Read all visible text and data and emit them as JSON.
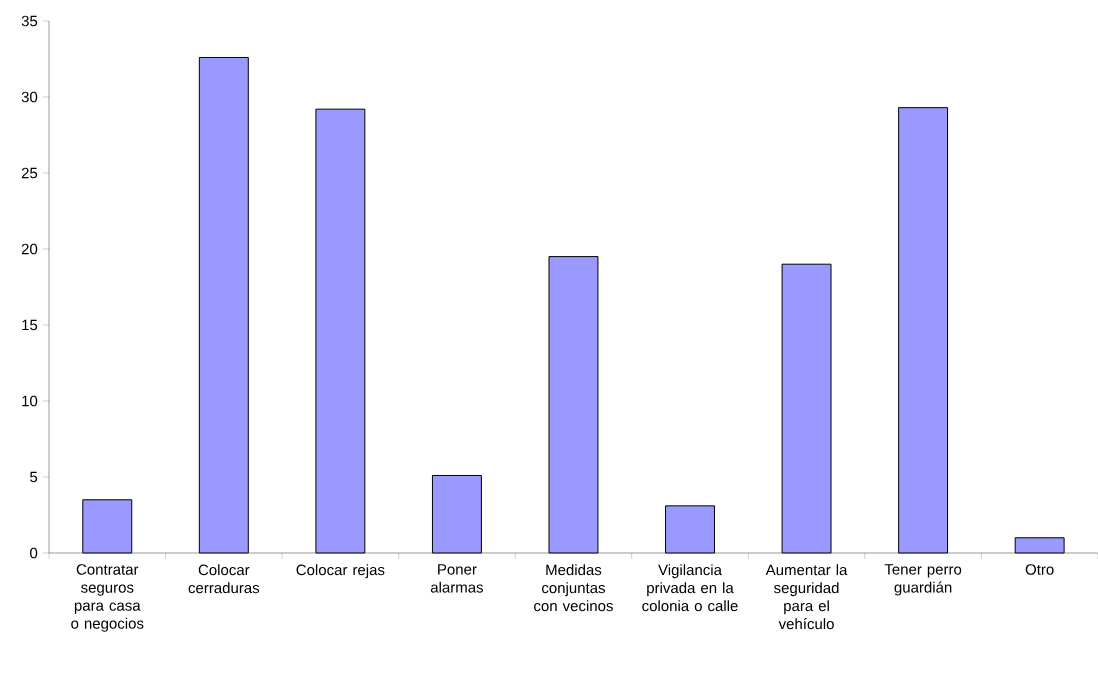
{
  "chart_data": {
    "type": "bar",
    "categories": [
      "Contratar seguros para casa o negocios",
      "Colocar cerraduras",
      "Colocar rejas",
      "Poner alarmas",
      "Medidas conjuntas con vecinos",
      "Vigilancia privada en la colonia o calle",
      "Aumentar la seguridad para el vehículo",
      "Tener perro guardián",
      "Otro"
    ],
    "values": [
      3.5,
      32.6,
      29.2,
      5.1,
      19.5,
      3.1,
      19.0,
      29.3,
      1.0
    ],
    "color": "#9999ff",
    "ylim": [
      0,
      35
    ],
    "yticks": [
      0,
      5,
      10,
      15,
      20,
      25,
      30,
      35
    ],
    "grid": false
  }
}
